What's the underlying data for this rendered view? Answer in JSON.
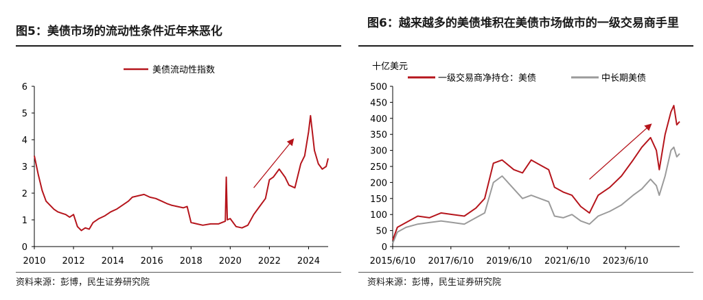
{
  "left": {
    "title": "图5：美债市场的流动性条件近年来恶化",
    "source": "资料来源：彭博，民生证券研究院",
    "colors": {
      "line": "#b5141b",
      "arrow": "#b5141b",
      "axis": "#000000"
    }
  },
  "right": {
    "title": "图6：越来越多的美债堆积在美债市场做市的一级交易商手里",
    "source": "资料来源：彭博，民生证券研究院",
    "colors": {
      "series1": "#b5141b",
      "series2": "#9a9a9a",
      "arrow": "#b5141b"
    }
  },
  "chart_data": [
    {
      "type": "line",
      "title": "",
      "xlabel": "",
      "ylabel": "",
      "ylim": [
        0,
        6
      ],
      "xlim": [
        2010,
        2025
      ],
      "x_ticks": [
        "2010",
        "2012",
        "2014",
        "2016",
        "2018",
        "2020",
        "2022",
        "2024"
      ],
      "y_ticks": [
        "0",
        "1",
        "2",
        "3",
        "4",
        "5",
        "6"
      ],
      "legend_position": "top-center",
      "annotation": "upward arrow (2021 to 2023)",
      "series": [
        {
          "name": "美债流动性指数",
          "x": [
            2010.0,
            2010.2,
            2010.4,
            2010.6,
            2010.8,
            2011.0,
            2011.2,
            2011.4,
            2011.6,
            2011.8,
            2012.0,
            2012.2,
            2012.4,
            2012.6,
            2012.8,
            2013.0,
            2013.3,
            2013.6,
            2013.9,
            2014.2,
            2014.5,
            2014.8,
            2015.0,
            2015.3,
            2015.6,
            2015.9,
            2016.2,
            2016.5,
            2016.8,
            2017.0,
            2017.3,
            2017.6,
            2017.8,
            2018.0,
            2018.3,
            2018.6,
            2019.0,
            2019.4,
            2019.75,
            2019.8,
            2019.85,
            2020.0,
            2020.3,
            2020.6,
            2020.9,
            2021.2,
            2021.5,
            2021.8,
            2022.0,
            2022.2,
            2022.5,
            2022.8,
            2023.0,
            2023.3,
            2023.6,
            2023.8,
            2024.0,
            2024.1,
            2024.3,
            2024.5,
            2024.7,
            2024.9,
            2025.0
          ],
          "values": [
            3.4,
            2.7,
            2.1,
            1.7,
            1.55,
            1.4,
            1.3,
            1.25,
            1.2,
            1.1,
            1.2,
            0.75,
            0.6,
            0.7,
            0.65,
            0.9,
            1.05,
            1.15,
            1.3,
            1.4,
            1.55,
            1.7,
            1.85,
            1.9,
            1.95,
            1.85,
            1.8,
            1.7,
            1.6,
            1.55,
            1.5,
            1.45,
            1.5,
            0.9,
            0.85,
            0.8,
            0.85,
            0.85,
            0.95,
            2.6,
            1.0,
            1.05,
            0.75,
            0.7,
            0.8,
            1.2,
            1.5,
            1.8,
            2.5,
            2.6,
            2.9,
            2.6,
            2.3,
            2.2,
            3.1,
            3.4,
            4.3,
            4.9,
            3.6,
            3.1,
            2.9,
            3.0,
            3.3
          ]
        }
      ]
    },
    {
      "type": "line",
      "title": "",
      "xlabel": "",
      "ylabel": "十亿美元",
      "ylim": [
        0,
        500
      ],
      "x_ticks": [
        "2015/6/10",
        "2017/6/10",
        "2019/6/10",
        "2021/6/10",
        "2023/6/10"
      ],
      "y_ticks": [
        "0",
        "50",
        "100",
        "150",
        "200",
        "250",
        "300",
        "350",
        "400",
        "450",
        "500"
      ],
      "legend_position": "top",
      "annotation": "upward arrow (2022 to 2024)",
      "x_range": [
        2015.44,
        2025.3
      ],
      "series": [
        {
          "name": "一级交易商净持仓：美债",
          "x": [
            2015.44,
            2015.6,
            2015.9,
            2016.3,
            2016.7,
            2017.1,
            2017.5,
            2017.9,
            2018.3,
            2018.6,
            2018.9,
            2019.2,
            2019.6,
            2019.9,
            2020.2,
            2020.5,
            2020.8,
            2021.0,
            2021.3,
            2021.6,
            2021.9,
            2022.2,
            2022.5,
            2022.9,
            2023.3,
            2023.7,
            2024.0,
            2024.3,
            2024.5,
            2024.6,
            2024.8,
            2025.0,
            2025.1,
            2025.2,
            2025.3
          ],
          "values": [
            20,
            60,
            75,
            95,
            90,
            105,
            100,
            95,
            120,
            150,
            260,
            270,
            240,
            230,
            270,
            255,
            240,
            185,
            170,
            160,
            125,
            105,
            160,
            185,
            220,
            270,
            310,
            340,
            300,
            240,
            350,
            420,
            440,
            380,
            390
          ]
        },
        {
          "name": "中长期美债",
          "x": [
            2015.44,
            2015.6,
            2015.9,
            2016.3,
            2016.7,
            2017.1,
            2017.5,
            2017.9,
            2018.3,
            2018.6,
            2018.9,
            2019.2,
            2019.6,
            2019.9,
            2020.2,
            2020.5,
            2020.8,
            2021.0,
            2021.3,
            2021.6,
            2021.9,
            2022.2,
            2022.5,
            2022.9,
            2023.3,
            2023.7,
            2024.0,
            2024.3,
            2024.5,
            2024.6,
            2024.8,
            2025.0,
            2025.1,
            2025.2,
            2025.3
          ],
          "values": [
            10,
            45,
            60,
            70,
            75,
            80,
            75,
            70,
            90,
            105,
            200,
            220,
            180,
            150,
            160,
            150,
            140,
            95,
            90,
            100,
            80,
            70,
            95,
            110,
            130,
            160,
            180,
            210,
            190,
            160,
            220,
            300,
            310,
            280,
            290
          ]
        }
      ]
    }
  ]
}
